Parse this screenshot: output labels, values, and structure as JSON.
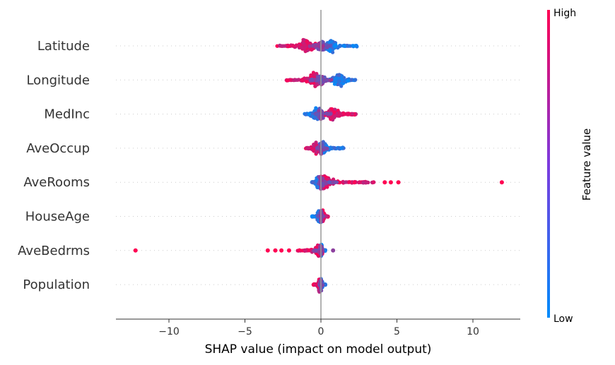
{
  "chart_data": {
    "type": "scatter",
    "subtype": "shap-beeswarm",
    "xlabel": "SHAP value (impact on model output)",
    "xlim": [
      -13.5,
      13
    ],
    "x_ticks": [
      -10,
      -5,
      0,
      5,
      10
    ],
    "x_tick_labels": [
      "−10",
      "−5",
      "0",
      "5",
      "10"
    ],
    "grid": false,
    "features": [
      {
        "name": "Latitude",
        "low_value_range": [
          0.0,
          2.4
        ],
        "low_peak": 0.6,
        "high_value_range": [
          -2.9,
          0.0
        ],
        "high_peak": -1.0
      },
      {
        "name": "Longitude",
        "low_value_range": [
          0.0,
          2.3
        ],
        "low_peak": 1.2,
        "high_value_range": [
          -2.3,
          0.5
        ],
        "high_peak": -0.4
      },
      {
        "name": "MedInc",
        "low_value_range": [
          -1.1,
          0.3
        ],
        "low_peak": -0.3,
        "high_value_range": [
          0.0,
          2.3
        ],
        "high_peak": 0.8
      },
      {
        "name": "AveOccup",
        "low_value_range": [
          -0.2,
          1.5
        ],
        "low_peak": 0.1,
        "high_value_range": [
          -1.0,
          0.2
        ],
        "high_peak": -0.3
      },
      {
        "name": "AveRooms",
        "low_value_range": [
          -0.6,
          0.2
        ],
        "low_peak": -0.2,
        "high_value_range": [
          0.0,
          3.5
        ],
        "high_peak": 0.2,
        "outliers": [
          {
            "x": 4.2,
            "color": "high"
          },
          {
            "x": 4.6,
            "color": "high"
          },
          {
            "x": 5.1,
            "color": "high"
          },
          {
            "x": 11.9,
            "color": "high"
          }
        ]
      },
      {
        "name": "HouseAge",
        "low_value_range": [
          -0.6,
          0.2
        ],
        "low_peak": -0.1,
        "high_value_range": [
          -0.1,
          0.5
        ],
        "high_peak": 0.1
      },
      {
        "name": "AveBedrms",
        "low_value_range": [
          -0.3,
          0.3
        ],
        "low_peak": 0.0,
        "high_value_range": [
          -1.6,
          0.1
        ],
        "high_peak": -0.1,
        "outliers": [
          {
            "x": -12.2,
            "color": "high"
          },
          {
            "x": -3.5,
            "color": "high"
          },
          {
            "x": -3.0,
            "color": "high"
          },
          {
            "x": -2.6,
            "color": "high"
          },
          {
            "x": -2.1,
            "color": "high"
          },
          {
            "x": 0.8,
            "color": "mid"
          }
        ]
      },
      {
        "name": "Population",
        "low_value_range": [
          -0.2,
          0.3
        ],
        "low_peak": 0.0,
        "high_value_range": [
          -0.5,
          0.1
        ],
        "high_peak": -0.1
      }
    ],
    "colorbar": {
      "title": "Feature value",
      "high_label": "High",
      "low_label": "Low",
      "low_color": "#008bfb",
      "high_color": "#ff0052"
    }
  }
}
